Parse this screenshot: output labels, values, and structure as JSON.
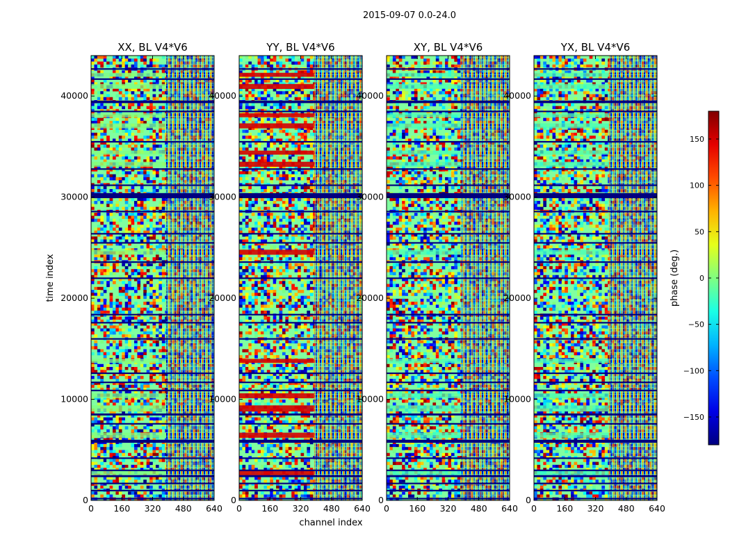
{
  "chart_data": {
    "type": "heatmap",
    "title": "2015-09-07 0.0-24.0",
    "xlabel": "channel index",
    "ylabel": "time index",
    "xlim": [
      0,
      640
    ],
    "ylim": [
      0,
      44000
    ],
    "x_ticks": [
      0,
      160,
      320,
      480,
      640
    ],
    "y_ticks": [
      0,
      10000,
      20000,
      30000,
      40000
    ],
    "colormap": "jet",
    "panels": [
      {
        "name": "XX",
        "title": "XX, BL V4*V6",
        "overlay_value": 0
      },
      {
        "name": "YY",
        "title": "YY, BL V4*V6",
        "overlay_value": 150
      },
      {
        "name": "XY",
        "title": "XY, BL V4*V6",
        "overlay_value": -20
      },
      {
        "name": "YX",
        "title": "YX, BL V4*V6",
        "overlay_value": -20
      }
    ],
    "flagged_time_bands": [
      [
        100,
        250
      ],
      [
        900,
        1050
      ],
      [
        1600,
        1750
      ],
      [
        2300,
        2500
      ],
      [
        2900,
        3050
      ],
      [
        4100,
        4250
      ],
      [
        5700,
        6000
      ],
      [
        7500,
        7650
      ],
      [
        8400,
        8600
      ],
      [
        10800,
        10950
      ],
      [
        11600,
        11750
      ],
      [
        12500,
        12650
      ],
      [
        15900,
        16050
      ],
      [
        17500,
        17650
      ],
      [
        18300,
        18450
      ],
      [
        21900,
        22050
      ],
      [
        23500,
        23650
      ],
      [
        25400,
        25550
      ],
      [
        26300,
        26450
      ],
      [
        28500,
        28650
      ],
      [
        29900,
        30400
      ],
      [
        31100,
        31250
      ],
      [
        32700,
        32850
      ],
      [
        35400,
        35550
      ],
      [
        38400,
        38550
      ],
      [
        39300,
        39550
      ],
      [
        41600,
        41750
      ],
      [
        42600,
        42750
      ]
    ],
    "bright_time_bands": [
      [
        2400,
        3000
      ],
      [
        6200,
        6700
      ],
      [
        8800,
        9400
      ],
      [
        10100,
        10600
      ],
      [
        13600,
        14000
      ],
      [
        24300,
        24800
      ],
      [
        33000,
        33500
      ],
      [
        34200,
        34600
      ],
      [
        36800,
        37300
      ],
      [
        37900,
        38300
      ],
      [
        40700,
        41200
      ],
      [
        41900,
        42300
      ]
    ],
    "fringe_channel_start": 390,
    "colorbar": {
      "label": "phase (deg.)",
      "range": [
        -180,
        180
      ],
      "ticks": [
        150,
        100,
        50,
        0,
        -50,
        -100,
        -150
      ],
      "tick_labels": [
        "150",
        "100",
        "50",
        "0",
        "−50",
        "−100",
        "−150"
      ]
    }
  },
  "colors": {
    "background": "#ffffff",
    "axis": "#000000",
    "flagged": "#00007f"
  }
}
